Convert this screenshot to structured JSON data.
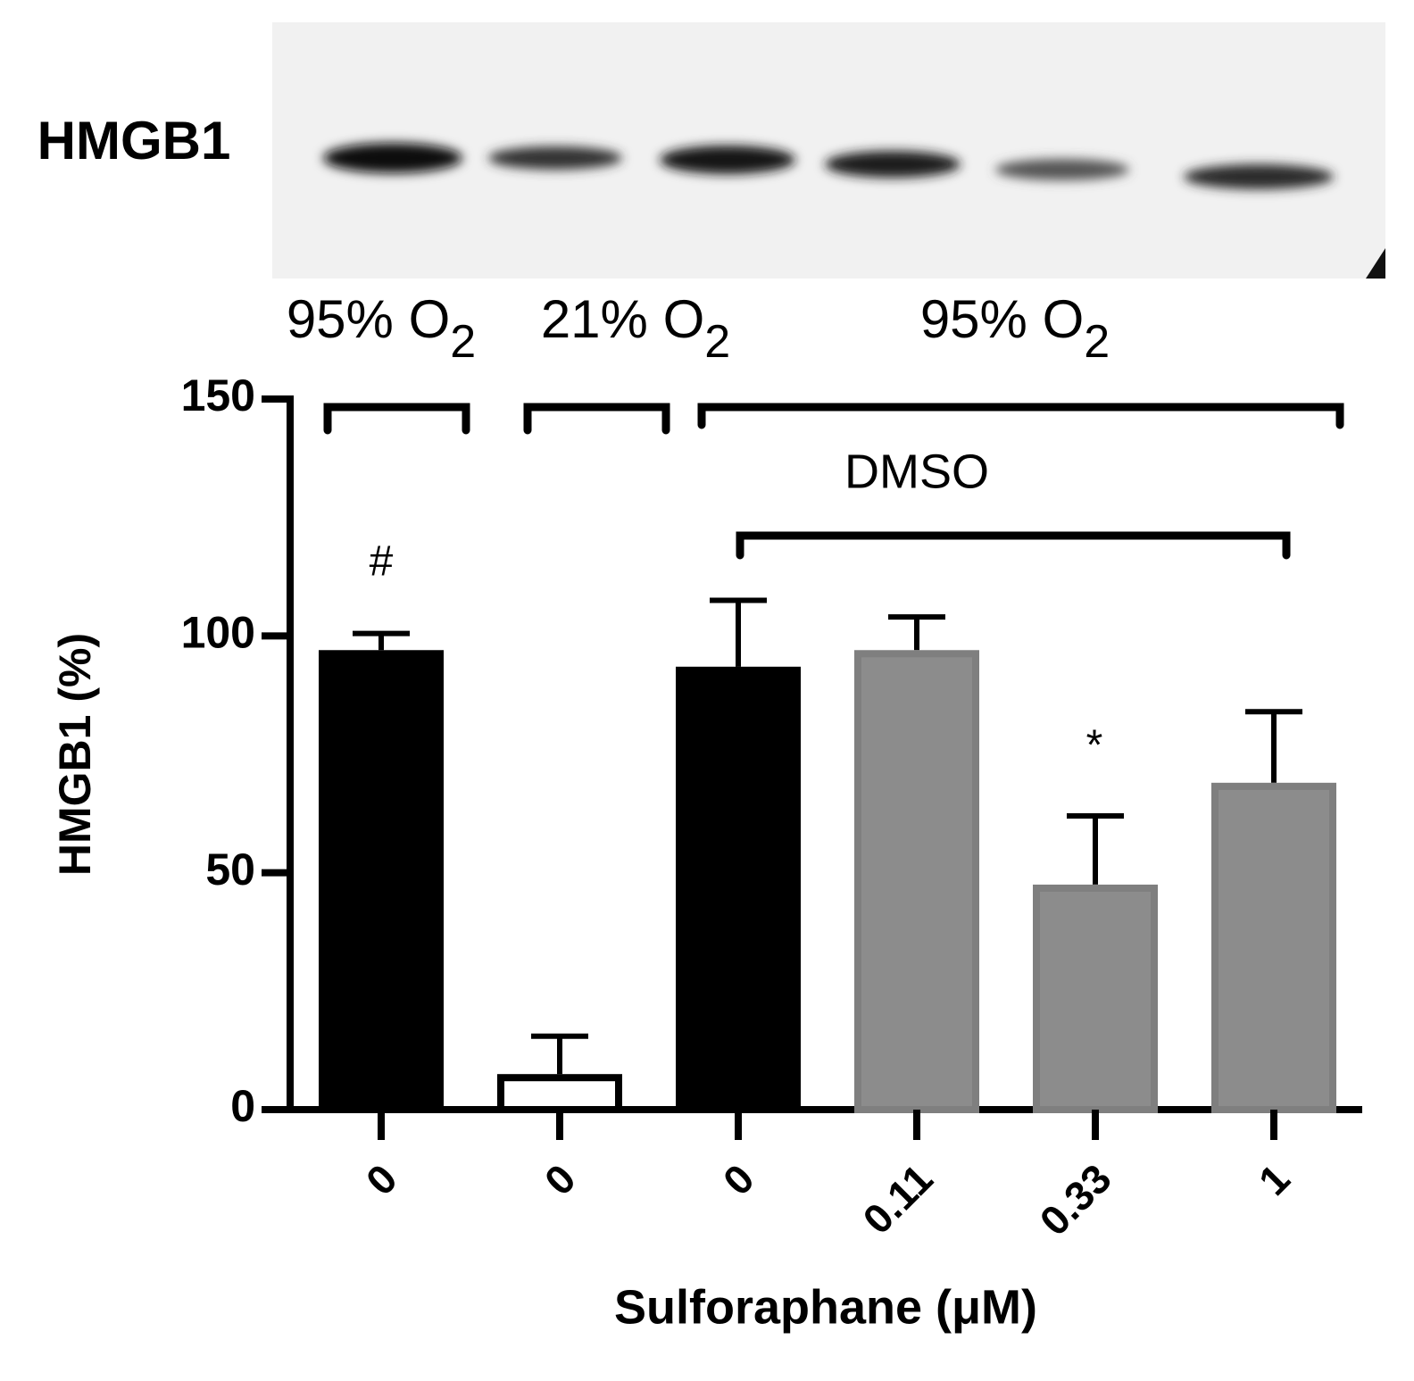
{
  "chart_data": {
    "type": "bar",
    "blot_label": "HMGB1",
    "group_labels": [
      {
        "text": "95% O",
        "sub": "2"
      },
      {
        "text": "21% O",
        "sub": "2"
      },
      {
        "text": "95% O",
        "sub": "2"
      }
    ],
    "subgroup_label": "DMSO",
    "categories": [
      "0",
      "0",
      "0",
      "0.11",
      "0.33",
      "1"
    ],
    "values": [
      97,
      7.5,
      93.5,
      97,
      47.5,
      69
    ],
    "errors": [
      3.5,
      8,
      14,
      7,
      14.5,
      15
    ],
    "colors": [
      "#000000",
      "#ffffff",
      "#000000",
      "#8c8c8c",
      "#8c8c8c",
      "#8c8c8c"
    ],
    "annotations": [
      "#",
      "*"
    ],
    "x_label": "Sulforaphane (μM)",
    "y_label": "HMGB1 (%)",
    "ylim": [
      0,
      150
    ],
    "yticks": [
      0,
      50,
      100,
      150
    ]
  }
}
